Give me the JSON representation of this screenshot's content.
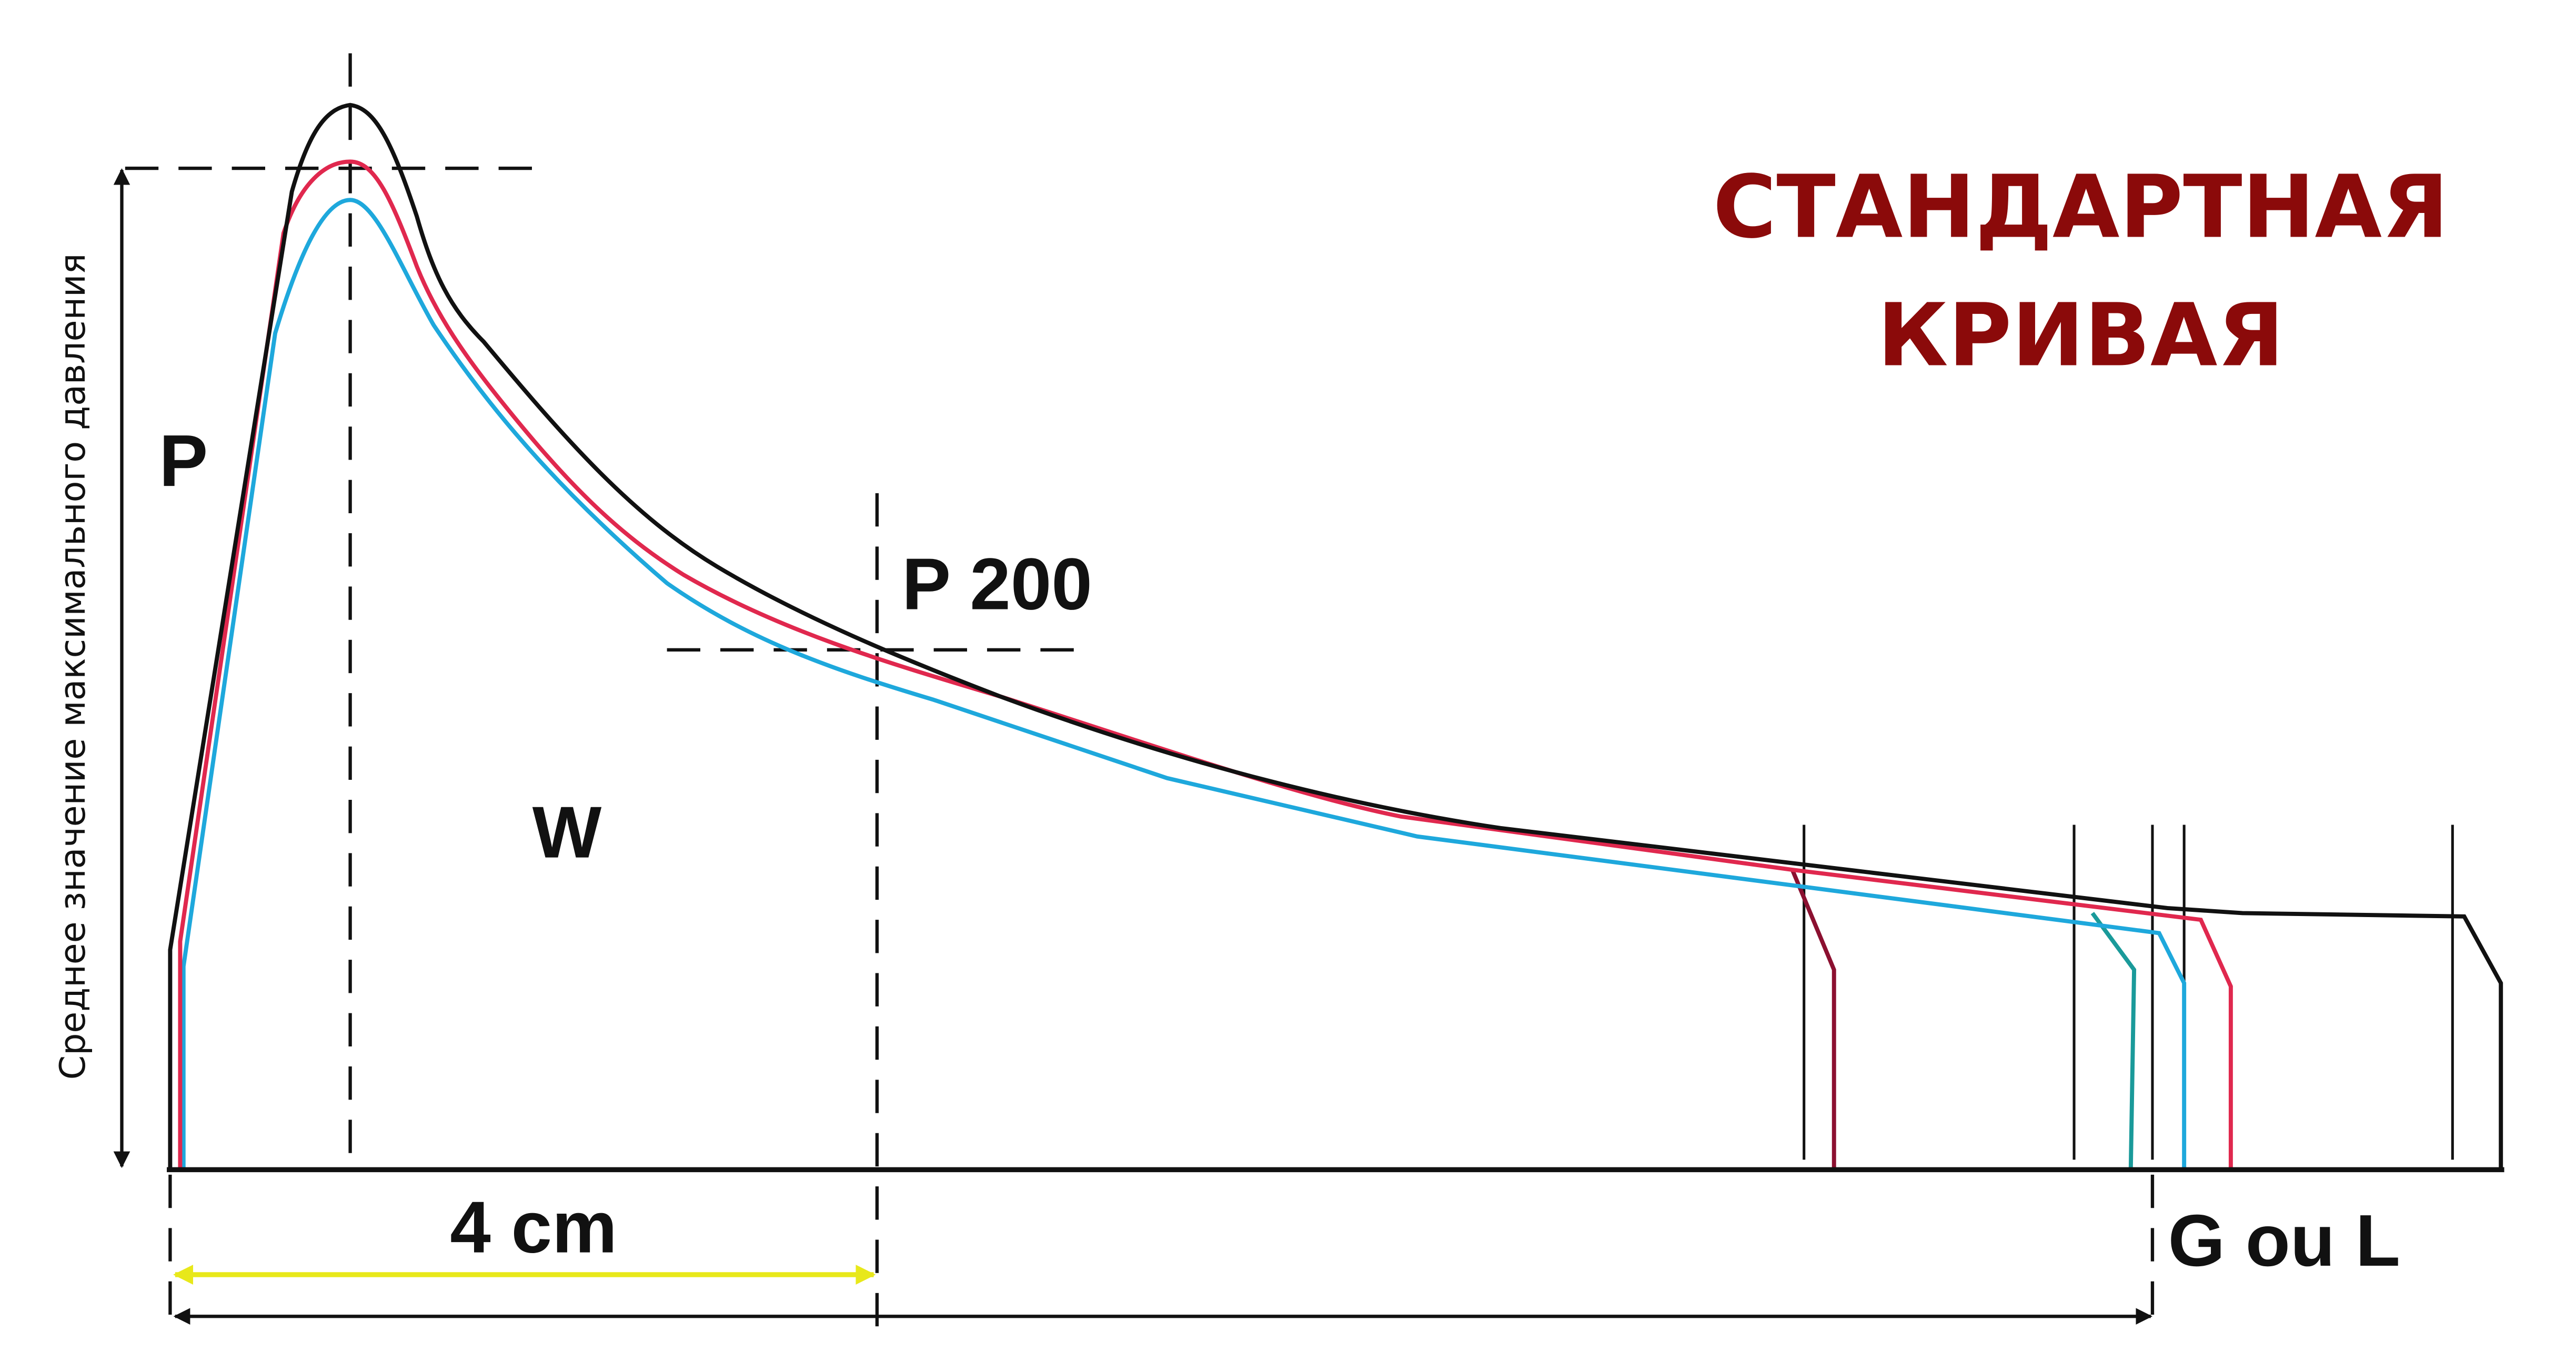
{
  "title": {
    "lines": [
      "СТАНДАРТНАЯ",
      "КРИВАЯ"
    ]
  },
  "axis_label": "Среднее значение максимального давления",
  "labels": {
    "p": "P",
    "w": "W",
    "p200": "P 200",
    "distance": "4 cm",
    "length": "G ou L"
  }
}
